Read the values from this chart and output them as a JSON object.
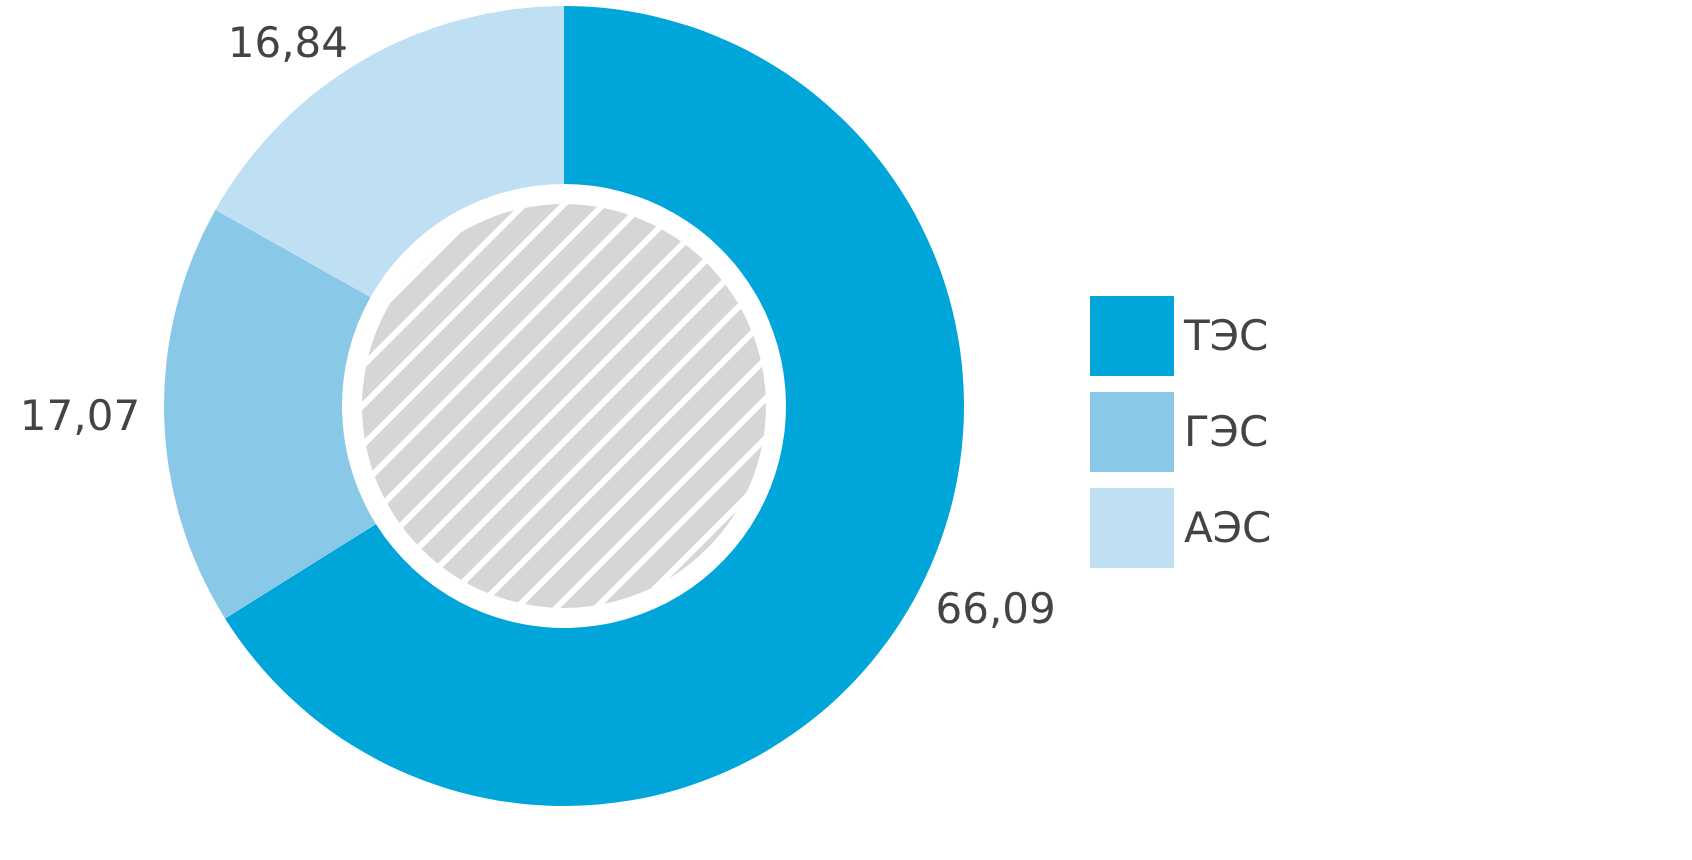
{
  "chart_data": {
    "type": "donut",
    "categories": [
      "ТЭС",
      "ГЭС",
      "АЭС"
    ],
    "values": [
      66.09,
      17.07,
      16.84
    ],
    "value_labels": [
      "66,09",
      "17,07",
      "16,84"
    ],
    "colors": [
      "#00a6d9",
      "#8ac8e8",
      "#bfdff3"
    ],
    "legend": "right"
  }
}
